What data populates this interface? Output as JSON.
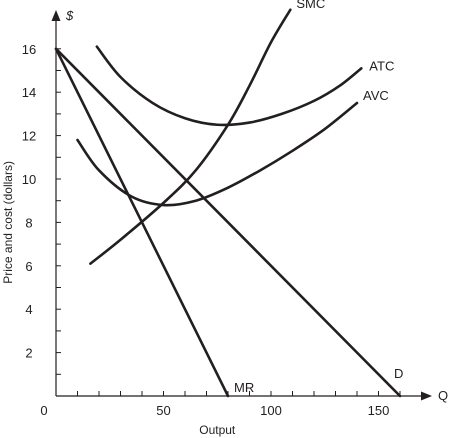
{
  "chart_data": {
    "type": "line",
    "xlabel": "Output",
    "ylabel": "Price and cost (dollars)",
    "y_unit_label": "$",
    "x_axis_end_label": "Q",
    "xlim": [
      0,
      170
    ],
    "ylim": [
      0,
      18
    ],
    "x_ticks": [
      0,
      50,
      100,
      150
    ],
    "y_ticks": [
      2,
      4,
      6,
      8,
      10,
      12,
      14,
      16
    ],
    "grid": false,
    "series": [
      {
        "name": "SMC",
        "points": [
          [
            16,
            6.1
          ],
          [
            30,
            7.2
          ],
          [
            50,
            8.9
          ],
          [
            65,
            10.4
          ],
          [
            80,
            12.5
          ],
          [
            90,
            14.3
          ],
          [
            100,
            16.3
          ],
          [
            109,
            17.8
          ]
        ]
      },
      {
        "name": "ATC",
        "points": [
          [
            19,
            16.1
          ],
          [
            30,
            14.7
          ],
          [
            45,
            13.5
          ],
          [
            60,
            12.8
          ],
          [
            75,
            12.5
          ],
          [
            90,
            12.6
          ],
          [
            105,
            13
          ],
          [
            120,
            13.6
          ],
          [
            132,
            14.3
          ],
          [
            142,
            15.1
          ]
        ]
      },
      {
        "name": "AVC",
        "points": [
          [
            10,
            11.8
          ],
          [
            20,
            10.4
          ],
          [
            35,
            9.2
          ],
          [
            50,
            8.8
          ],
          [
            65,
            9
          ],
          [
            80,
            9.6
          ],
          [
            95,
            10.4
          ],
          [
            110,
            11.3
          ],
          [
            125,
            12.3
          ],
          [
            140,
            13.5
          ]
        ]
      },
      {
        "name": "MR",
        "points": [
          [
            0,
            16
          ],
          [
            80,
            0
          ]
        ]
      },
      {
        "name": "D",
        "points": [
          [
            0,
            16
          ],
          [
            160,
            0
          ]
        ]
      }
    ]
  }
}
